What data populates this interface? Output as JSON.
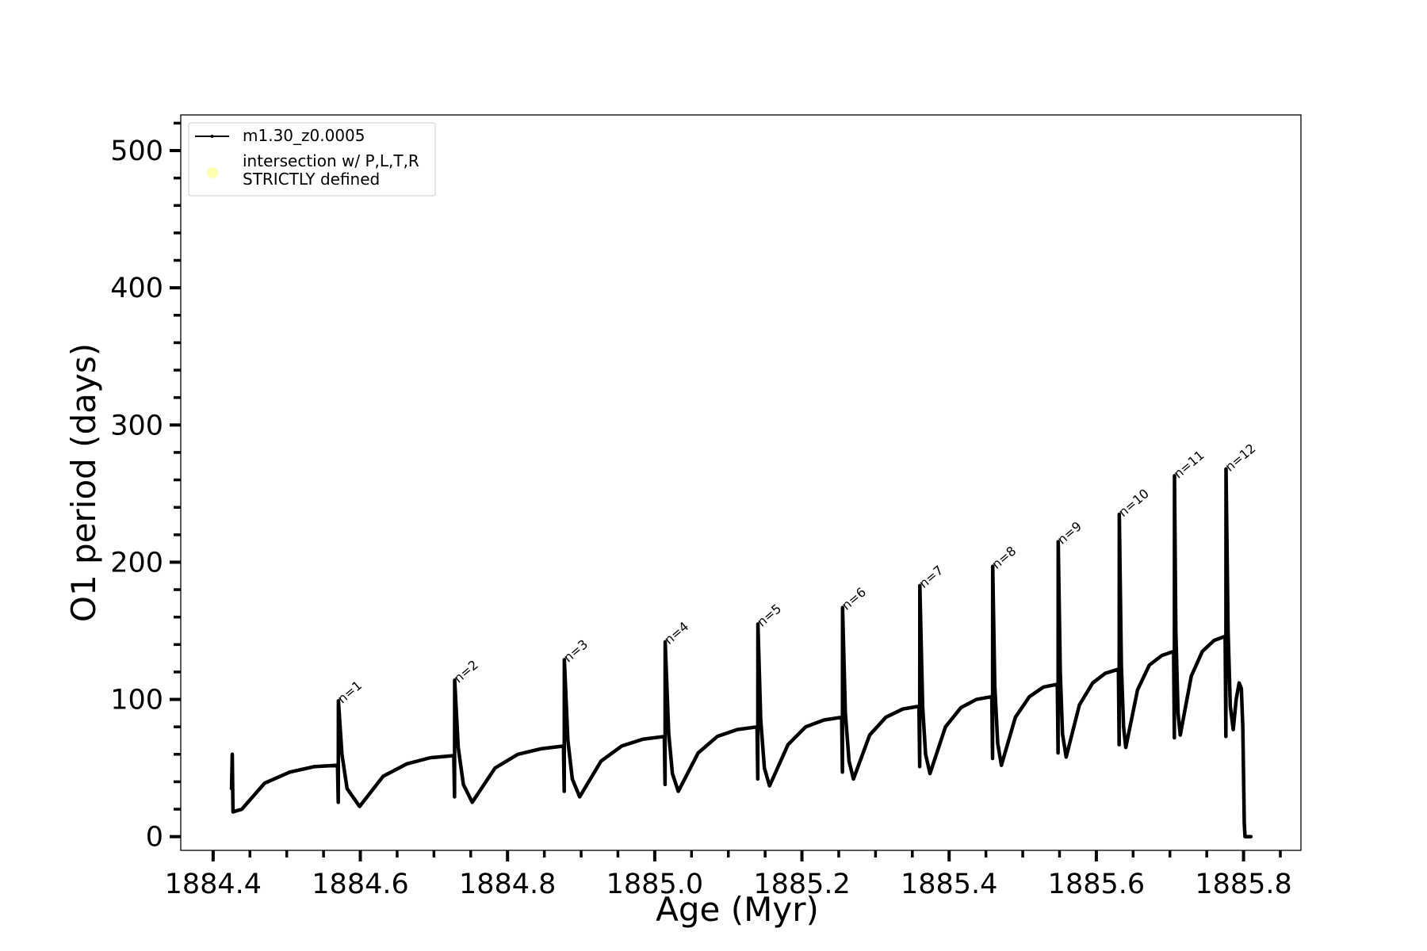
{
  "chart_data": {
    "type": "line",
    "xlabel": "Age (Myr)",
    "ylabel": "O1 period (days)",
    "xlim": [
      1884.356,
      1885.878
    ],
    "ylim": [
      -10,
      526
    ],
    "xticks": [
      1884.4,
      1884.6,
      1884.8,
      {
        "value": 1885,
        "label": "1885.0"
      },
      1885.2,
      1885.4,
      1885.6,
      1885.8
    ],
    "yticks": [
      0,
      100,
      200,
      300,
      400,
      500
    ],
    "xminorticks": [
      1884.45,
      1884.5,
      1884.55,
      1884.65,
      1884.7,
      1884.75,
      1884.85,
      1884.9,
      1884.95,
      1885.05,
      1885.1,
      1885.15,
      1885.25,
      1885.3,
      1885.35,
      1885.45,
      1885.5,
      1885.55,
      1885.65,
      1885.7,
      1885.75,
      1885.85
    ],
    "yminorticks": [
      20,
      40,
      60,
      80,
      120,
      140,
      160,
      180,
      220,
      240,
      260,
      280,
      320,
      340,
      360,
      380,
      420,
      440,
      460,
      480,
      520
    ],
    "legend": "upper left",
    "series": [
      {
        "name": "m1.30_z0.0005",
        "color": "#000000",
        "x": [
          1884.425,
          1884.426,
          1884.427,
          1884.439,
          1884.47,
          1884.504,
          1884.537,
          1884.569,
          1884.57,
          1884.5702,
          1884.575,
          1884.582,
          1884.599,
          1884.631,
          1884.663,
          1884.695,
          1884.727,
          1884.728,
          1884.7282,
          1884.733,
          1884.74,
          1884.752,
          1884.783,
          1884.814,
          1884.845,
          1884.876,
          1884.877,
          1884.8772,
          1884.882,
          1884.888,
          1884.898,
          1884.927,
          1884.955,
          1884.984,
          1885.013,
          1885.014,
          1885.0142,
          1885.019,
          1885.024,
          1885.032,
          1885.059,
          1885.085,
          1885.112,
          1885.139,
          1885.14,
          1885.1402,
          1885.144,
          1885.149,
          1885.156,
          1885.181,
          1885.205,
          1885.23,
          1885.254,
          1885.255,
          1885.2552,
          1885.259,
          1885.264,
          1885.27,
          1885.292,
          1885.314,
          1885.337,
          1885.359,
          1885.36,
          1885.3602,
          1885.364,
          1885.368,
          1885.374,
          1885.395,
          1885.416,
          1885.437,
          1885.458,
          1885.459,
          1885.4592,
          1885.462,
          1885.466,
          1885.471,
          1885.49,
          1885.509,
          1885.528,
          1885.547,
          1885.548,
          1885.5482,
          1885.551,
          1885.554,
          1885.559,
          1885.577,
          1885.595,
          1885.612,
          1885.63,
          1885.631,
          1885.6312,
          1885.634,
          1885.637,
          1885.64,
          1885.656,
          1885.672,
          1885.689,
          1885.705,
          1885.706,
          1885.7062,
          1885.708,
          1885.711,
          1885.714,
          1885.729,
          1885.744,
          1885.76,
          1885.775,
          1885.776,
          1885.7762,
          1885.779,
          1885.782,
          1885.786,
          1885.79,
          1885.794,
          1885.797,
          1885.799,
          1885.801,
          1885.802,
          1885.81
        ],
        "values": [
          35,
          60,
          18,
          20,
          39,
          47,
          51,
          52,
          25,
          99,
          60,
          35,
          22,
          44,
          53,
          57.5,
          59,
          29,
          114,
          65,
          38,
          25,
          50,
          60,
          64,
          66,
          33,
          129,
          70,
          42,
          29,
          55,
          66,
          71,
          73,
          38,
          142,
          75,
          46,
          33,
          61,
          73,
          78,
          80,
          42,
          155,
          85,
          50,
          37,
          67,
          80,
          85,
          87,
          47,
          167,
          90,
          55,
          42,
          74,
          87,
          93,
          95,
          51,
          183,
          95,
          60,
          46,
          80,
          94,
          100,
          102,
          57,
          197,
          110,
          68,
          52,
          87,
          102,
          109,
          111,
          61,
          215,
          120,
          75,
          58,
          96,
          112,
          119,
          122,
          67,
          235,
          125,
          80,
          65,
          107,
          125,
          132,
          135,
          72,
          263,
          150,
          90,
          74,
          117,
          135,
          143,
          146,
          73,
          268,
          150,
          95,
          78,
          100,
          112,
          108,
          80,
          10,
          0,
          0
        ]
      },
      {
        "name": "intersection w/ P,L,T,R\nSTRICTLY defined",
        "color": "#ffffb0",
        "x": [],
        "values": []
      }
    ],
    "annotations": [
      {
        "text": "n=1",
        "x": 1884.57,
        "y": 99
      },
      {
        "text": "n=2",
        "x": 1884.728,
        "y": 114
      },
      {
        "text": "n=3",
        "x": 1884.877,
        "y": 129
      },
      {
        "text": "n=4",
        "x": 1885.014,
        "y": 142
      },
      {
        "text": "n=5",
        "x": 1885.14,
        "y": 155
      },
      {
        "text": "n=6",
        "x": 1885.255,
        "y": 167
      },
      {
        "text": "n=7",
        "x": 1885.36,
        "y": 183
      },
      {
        "text": "n=8",
        "x": 1885.459,
        "y": 197
      },
      {
        "text": "n=9",
        "x": 1885.548,
        "y": 215
      },
      {
        "text": "n=10",
        "x": 1885.631,
        "y": 235
      },
      {
        "text": "n=11",
        "x": 1885.706,
        "y": 263
      },
      {
        "text": "n=12",
        "x": 1885.776,
        "y": 268
      }
    ]
  }
}
